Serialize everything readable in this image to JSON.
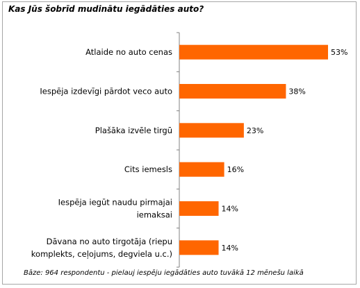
{
  "title": "Kas Jūs šobrīd mudinātu iegādāties auto?",
  "footnote": "Bāze: 964 respondentu - pielauj iespēju iegādāties auto tuvākā 12 mēnešu laikā",
  "colors": {
    "bar": "#ff6600",
    "axis": "#808080",
    "frame": "#a6a6a6"
  },
  "chart_data": {
    "type": "bar",
    "orientation": "horizontal",
    "categories": [
      [
        "Atlaide no auto cenas"
      ],
      [
        "Iespēja izdevīgi pārdot veco auto"
      ],
      [
        "Plašāka izvēle tirgū"
      ],
      [
        "Cits iemesls"
      ],
      [
        "Iespēja iegūt naudu pirmajai",
        "iemaksai"
      ],
      [
        "Dāvana no auto tirgotāja (riepu",
        "komplekts, ceļojums, degviela  u.c.)"
      ]
    ],
    "values": [
      53,
      38,
      23,
      16,
      14,
      14
    ],
    "value_labels": [
      "53%",
      "38%",
      "23%",
      "16%",
      "14%",
      "14%"
    ],
    "xlim": [
      0,
      53
    ],
    "grid": false,
    "legend": "none"
  }
}
